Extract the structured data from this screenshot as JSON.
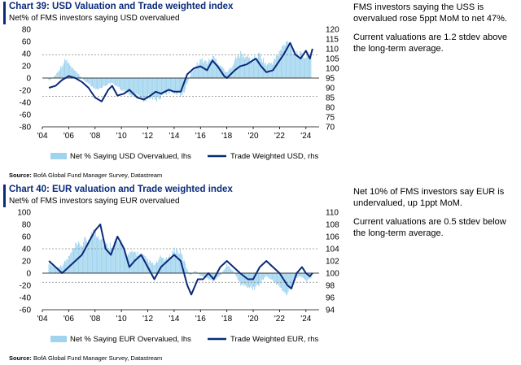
{
  "chart_data": [
    {
      "type": "bar",
      "title": "Chart 39: USD Valuation and Trade weighted index",
      "subtitle": "Net% of FMS investors saying USD overvalued",
      "source_label": "Source:",
      "source": "BofA Global Fund Manager Survey, Datastream",
      "x_range": [
        2004,
        2025
      ],
      "x_ticks": [
        "'04",
        "'06",
        "'08",
        "'10",
        "'12",
        "'14",
        "'16",
        "'18",
        "'20",
        "'22",
        "'24"
      ],
      "y_left": {
        "range": [
          -80,
          80
        ],
        "ticks": [
          "80",
          "60",
          "40",
          "20",
          "0",
          "-20",
          "-40",
          "-60",
          "-80"
        ]
      },
      "y_right": {
        "range": [
          70,
          120
        ],
        "ticks": [
          "120",
          "115",
          "110",
          "105",
          "100",
          "95",
          "90",
          "85",
          "80",
          "75",
          "70"
        ]
      },
      "reference_lines_lhs": [
        38,
        -30
      ],
      "bar_color": "#9fd3ee",
      "line_color": "#0a2a7a",
      "series": [
        {
          "name": "Net % Saying USD Overvalued, lhs",
          "axis": "left",
          "kind": "bar",
          "points": [
            [
              2004.5,
              -5
            ],
            [
              2005.0,
              5
            ],
            [
              2005.5,
              25
            ],
            [
              2005.8,
              35
            ],
            [
              2006.2,
              20
            ],
            [
              2006.7,
              8
            ],
            [
              2007.2,
              -5
            ],
            [
              2007.7,
              -15
            ],
            [
              2008.2,
              -25
            ],
            [
              2008.7,
              -15
            ],
            [
              2009.2,
              -10
            ],
            [
              2009.7,
              -15
            ],
            [
              2010.2,
              -25
            ],
            [
              2010.7,
              -30
            ],
            [
              2011.2,
              -35
            ],
            [
              2011.7,
              -40
            ],
            [
              2012.2,
              -35
            ],
            [
              2012.7,
              -40
            ],
            [
              2013.2,
              -30
            ],
            [
              2013.7,
              -25
            ],
            [
              2014.2,
              -30
            ],
            [
              2014.7,
              -30
            ],
            [
              2015.0,
              -10
            ],
            [
              2015.3,
              10
            ],
            [
              2015.7,
              25
            ],
            [
              2016.0,
              35
            ],
            [
              2016.5,
              30
            ],
            [
              2017.0,
              40
            ],
            [
              2017.5,
              25
            ],
            [
              2018.0,
              10
            ],
            [
              2018.3,
              20
            ],
            [
              2018.7,
              38
            ],
            [
              2019.0,
              45
            ],
            [
              2019.5,
              40
            ],
            [
              2020.0,
              35
            ],
            [
              2020.5,
              45
            ],
            [
              2021.0,
              25
            ],
            [
              2021.5,
              30
            ],
            [
              2022.0,
              50
            ],
            [
              2022.3,
              60
            ],
            [
              2022.7,
              70
            ],
            [
              2023.0,
              55
            ],
            [
              2023.5,
              45
            ],
            [
              2024.0,
              40
            ],
            [
              2024.4,
              47
            ]
          ]
        },
        {
          "name": "Trade Weighted USD, rhs",
          "axis": "right",
          "kind": "line",
          "points": [
            [
              2004.5,
              90
            ],
            [
              2005.0,
              91
            ],
            [
              2005.5,
              94
            ],
            [
              2006.0,
              96
            ],
            [
              2006.5,
              95
            ],
            [
              2007.0,
              93
            ],
            [
              2007.5,
              90
            ],
            [
              2008.0,
              85
            ],
            [
              2008.5,
              83
            ],
            [
              2009.0,
              89
            ],
            [
              2009.3,
              91
            ],
            [
              2009.7,
              86
            ],
            [
              2010.2,
              87
            ],
            [
              2010.6,
              89
            ],
            [
              2011.2,
              85
            ],
            [
              2011.7,
              84
            ],
            [
              2012.2,
              86
            ],
            [
              2012.6,
              88
            ],
            [
              2013.0,
              87
            ],
            [
              2013.6,
              89
            ],
            [
              2014.0,
              88
            ],
            [
              2014.5,
              88
            ],
            [
              2015.0,
              97
            ],
            [
              2015.5,
              100
            ],
            [
              2016.0,
              101
            ],
            [
              2016.5,
              99
            ],
            [
              2016.9,
              104
            ],
            [
              2017.3,
              101
            ],
            [
              2017.8,
              96
            ],
            [
              2018.0,
              95
            ],
            [
              2018.6,
              99
            ],
            [
              2019.0,
              101
            ],
            [
              2019.5,
              102
            ],
            [
              2020.2,
              105
            ],
            [
              2020.6,
              101
            ],
            [
              2021.0,
              98
            ],
            [
              2021.5,
              99
            ],
            [
              2021.9,
              103
            ],
            [
              2022.3,
              107
            ],
            [
              2022.8,
              113
            ],
            [
              2023.2,
              107
            ],
            [
              2023.6,
              105
            ],
            [
              2024.0,
              109
            ],
            [
              2024.3,
              105
            ],
            [
              2024.5,
              110
            ]
          ]
        }
      ]
    },
    {
      "type": "bar",
      "title": "Chart 40: EUR valuation and Trade weighted index",
      "subtitle": "Net% of FMS investors saying EUR overvalued",
      "source_label": "Source:",
      "source": "BofA Global Fund Manager Survey, Datastream",
      "x_range": [
        2004,
        2025
      ],
      "x_ticks": [
        "'04",
        "'06",
        "'08",
        "'10",
        "'12",
        "'14",
        "'16",
        "'18",
        "'20",
        "'22",
        "'24"
      ],
      "y_left": {
        "range": [
          -60,
          100
        ],
        "ticks": [
          "100",
          "80",
          "60",
          "40",
          "20",
          "0",
          "-20",
          "-40",
          "-60"
        ]
      },
      "y_right": {
        "range": [
          94,
          110
        ],
        "ticks": [
          "110",
          "108",
          "106",
          "104",
          "102",
          "100",
          "98",
          "96",
          "94"
        ]
      },
      "reference_lines_lhs": [
        40,
        -15
      ],
      "bar_color": "#9fd3ee",
      "line_color": "#0a2a7a",
      "series": [
        {
          "name": "Net % Saying EUR Overvalued, lhs",
          "axis": "left",
          "kind": "bar",
          "points": [
            [
              2004.5,
              20
            ],
            [
              2005.0,
              10
            ],
            [
              2005.5,
              15
            ],
            [
              2006.0,
              30
            ],
            [
              2006.5,
              50
            ],
            [
              2007.0,
              55
            ],
            [
              2007.5,
              65
            ],
            [
              2008.0,
              80
            ],
            [
              2008.3,
              75
            ],
            [
              2008.7,
              55
            ],
            [
              2009.0,
              50
            ],
            [
              2009.5,
              60
            ],
            [
              2010.0,
              55
            ],
            [
              2010.5,
              35
            ],
            [
              2011.0,
              40
            ],
            [
              2011.5,
              35
            ],
            [
              2012.0,
              25
            ],
            [
              2012.5,
              15
            ],
            [
              2013.0,
              30
            ],
            [
              2013.5,
              25
            ],
            [
              2014.0,
              45
            ],
            [
              2014.5,
              40
            ],
            [
              2014.8,
              20
            ],
            [
              2015.2,
              -5
            ],
            [
              2015.6,
              5
            ],
            [
              2016.0,
              -5
            ],
            [
              2016.5,
              -10
            ],
            [
              2017.0,
              -15
            ],
            [
              2017.5,
              -5
            ],
            [
              2018.0,
              15
            ],
            [
              2018.5,
              5
            ],
            [
              2019.0,
              -20
            ],
            [
              2019.5,
              -25
            ],
            [
              2020.0,
              -30
            ],
            [
              2020.5,
              -20
            ],
            [
              2021.0,
              -5
            ],
            [
              2021.5,
              -15
            ],
            [
              2022.0,
              -25
            ],
            [
              2022.5,
              -40
            ],
            [
              2022.9,
              -30
            ],
            [
              2023.2,
              -10
            ],
            [
              2023.6,
              -5
            ],
            [
              2024.0,
              -15
            ],
            [
              2024.4,
              -10
            ]
          ]
        },
        {
          "name": "Trade Weighted EUR, rhs",
          "axis": "right",
          "kind": "line",
          "points": [
            [
              2004.5,
              102
            ],
            [
              2005.0,
              101
            ],
            [
              2005.5,
              100
            ],
            [
              2006.0,
              101
            ],
            [
              2006.5,
              102
            ],
            [
              2007.0,
              103
            ],
            [
              2007.5,
              105
            ],
            [
              2008.0,
              107
            ],
            [
              2008.4,
              108
            ],
            [
              2008.8,
              104
            ],
            [
              2009.2,
              103
            ],
            [
              2009.7,
              106
            ],
            [
              2010.2,
              104
            ],
            [
              2010.6,
              101
            ],
            [
              2011.0,
              102
            ],
            [
              2011.5,
              103
            ],
            [
              2012.0,
              101
            ],
            [
              2012.5,
              99
            ],
            [
              2013.0,
              101
            ],
            [
              2013.5,
              102
            ],
            [
              2014.0,
              103
            ],
            [
              2014.5,
              102
            ],
            [
              2015.0,
              98
            ],
            [
              2015.3,
              96.5
            ],
            [
              2015.8,
              99
            ],
            [
              2016.2,
              99
            ],
            [
              2016.6,
              100
            ],
            [
              2017.0,
              99
            ],
            [
              2017.5,
              101
            ],
            [
              2018.0,
              102
            ],
            [
              2018.5,
              101
            ],
            [
              2019.0,
              100
            ],
            [
              2019.6,
              99
            ],
            [
              2020.0,
              99
            ],
            [
              2020.5,
              101
            ],
            [
              2021.0,
              102
            ],
            [
              2021.5,
              101
            ],
            [
              2022.0,
              100
            ],
            [
              2022.6,
              98
            ],
            [
              2022.9,
              97.5
            ],
            [
              2023.3,
              100
            ],
            [
              2023.7,
              101
            ],
            [
              2024.0,
              100
            ],
            [
              2024.3,
              99.5
            ],
            [
              2024.5,
              100
            ]
          ]
        }
      ]
    }
  ],
  "commentary": {
    "chart39": [
      "FMS investors saying the USS is overvalued rose 5ppt MoM to net 47%.",
      "Current valuations are 1.2 stdev above the long-term average."
    ],
    "chart40": [
      "Net 10% of FMS investors say EUR is undervalued, up 1ppt MoM.",
      "Current valuations are 0.5 stdev below the long-term average."
    ]
  }
}
